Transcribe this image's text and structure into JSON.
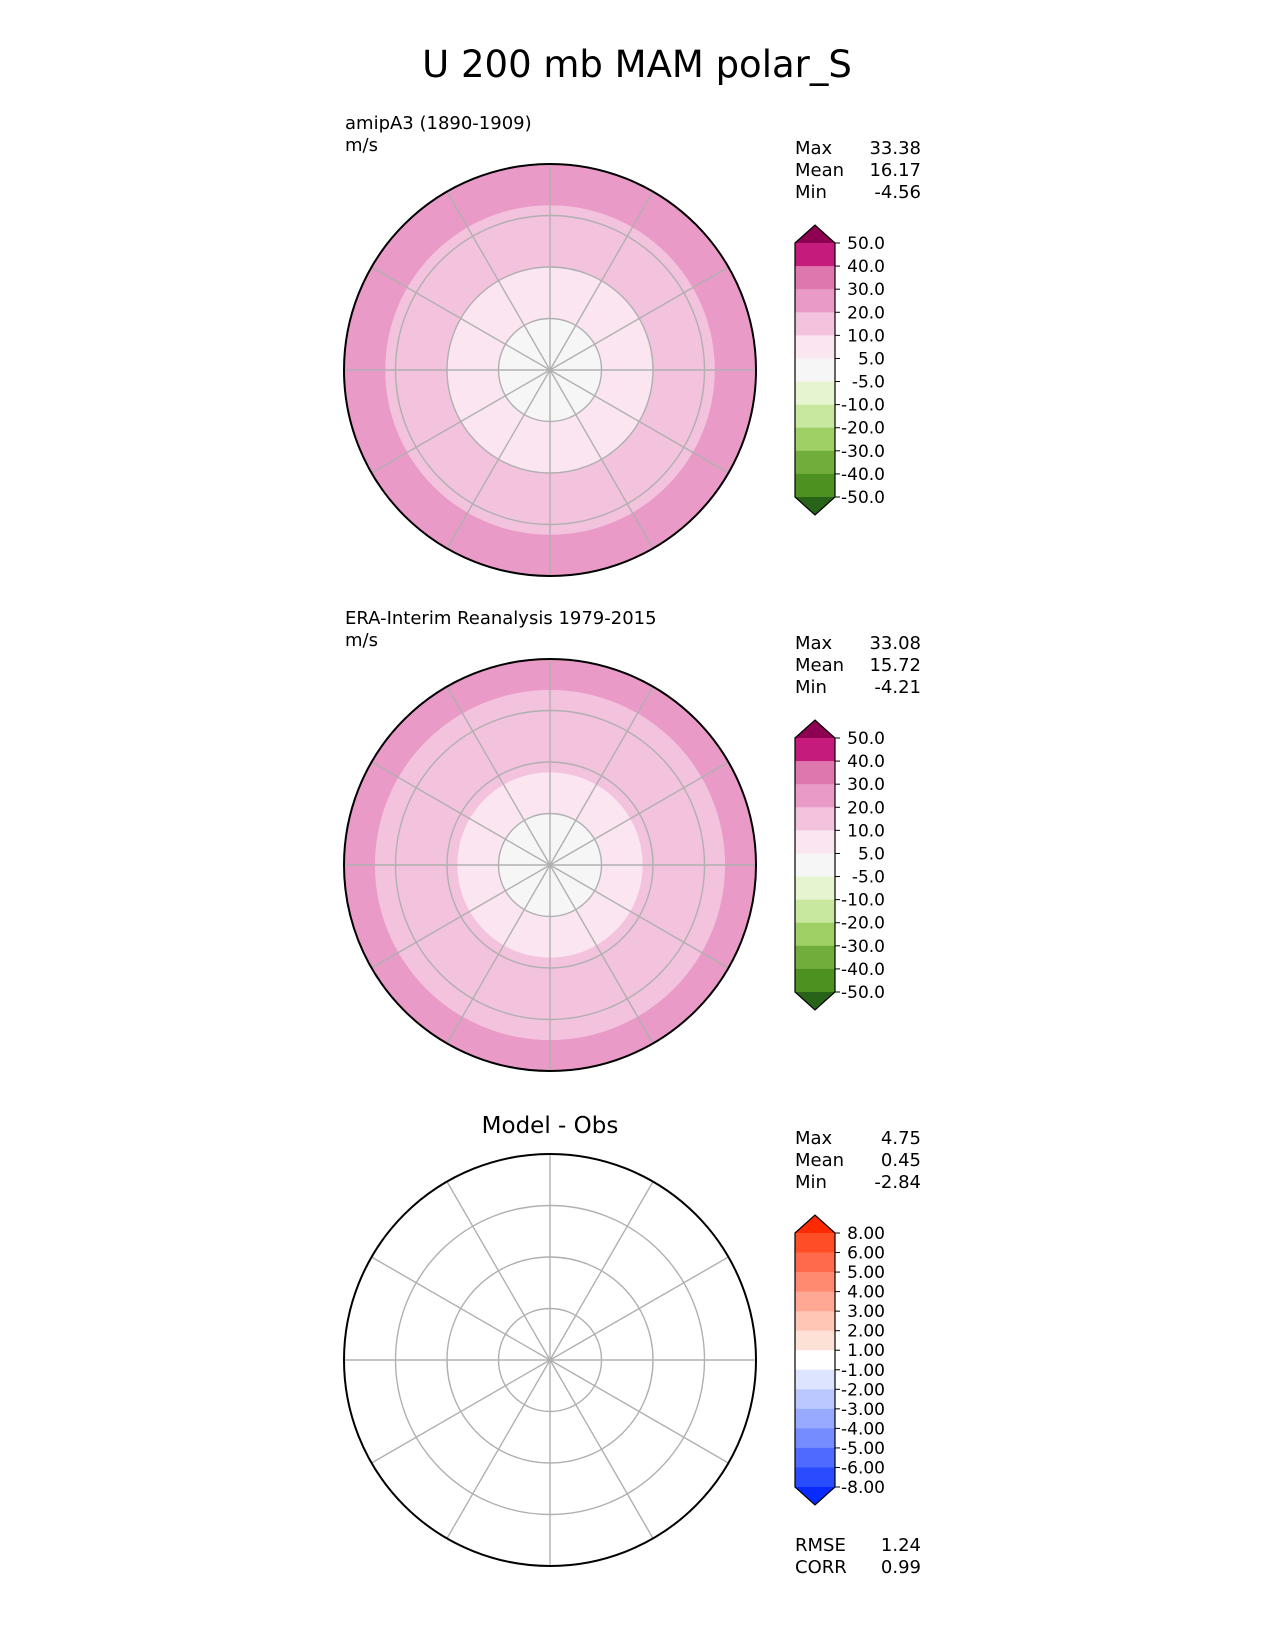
{
  "chart_data": {
    "type": "heatmap",
    "title": "U 200 mb MAM polar_S",
    "panels": [
      {
        "id": "test",
        "title": "",
        "subtitle_lines": [
          "amipA3 (1890-1909)",
          "m/s"
        ],
        "stats": [
          {
            "label": "Max",
            "value": "33.38"
          },
          {
            "label": "Mean",
            "value": "16.17"
          },
          {
            "label": "Min",
            "value": "-4.56"
          }
        ],
        "colorbar": {
          "levels": [
            "50.0",
            "40.0",
            "30.0",
            "20.0",
            "10.0",
            "5.0",
            "-5.0",
            "-10.0",
            "-20.0",
            "-30.0",
            "-40.0",
            "-50.0"
          ],
          "colors": [
            "#8e0152",
            "#c51b7d",
            "#de77ae",
            "#e99ac6",
            "#f3c2dd",
            "#fbe5f0",
            "#f6f6f6",
            "#e6f5d0",
            "#c8e8a0",
            "#9fd065",
            "#71ad3a",
            "#4d9221",
            "#276419"
          ],
          "extend": "both"
        },
        "field_bands": [
          {
            "min_lat": -90,
            "max_lat": -80,
            "value": 2.5
          },
          {
            "min_lat": -80,
            "max_lat": -70,
            "value": 7.5
          },
          {
            "min_lat": -70,
            "max_lat": -58,
            "value": 15.0
          },
          {
            "min_lat": -58,
            "max_lat": -50,
            "value": 25.0
          }
        ],
        "extras": []
      },
      {
        "id": "ref",
        "title": "",
        "subtitle_lines": [
          "ERA-Interim Reanalysis 1979-2015",
          "m/s"
        ],
        "stats": [
          {
            "label": "Max",
            "value": "33.08"
          },
          {
            "label": "Mean",
            "value": "15.72"
          },
          {
            "label": "Min",
            "value": "-4.21"
          }
        ],
        "colorbar": {
          "levels": [
            "50.0",
            "40.0",
            "30.0",
            "20.0",
            "10.0",
            "5.0",
            "-5.0",
            "-10.0",
            "-20.0",
            "-30.0",
            "-40.0",
            "-50.0"
          ],
          "colors": [
            "#8e0152",
            "#c51b7d",
            "#de77ae",
            "#e99ac6",
            "#f3c2dd",
            "#fbe5f0",
            "#f6f6f6",
            "#e6f5d0",
            "#c8e8a0",
            "#9fd065",
            "#71ad3a",
            "#4d9221",
            "#276419"
          ],
          "extend": "both"
        },
        "field_bands": [
          {
            "min_lat": -90,
            "max_lat": -80,
            "value": 2.5
          },
          {
            "min_lat": -80,
            "max_lat": -72,
            "value": 7.5
          },
          {
            "min_lat": -72,
            "max_lat": -56,
            "value": 15.0
          },
          {
            "min_lat": -56,
            "max_lat": -50,
            "value": 25.0
          }
        ],
        "extras": []
      },
      {
        "id": "diff",
        "title": "Model - Obs",
        "subtitle_lines": [],
        "stats": [
          {
            "label": "Max",
            "value": "4.75"
          },
          {
            "label": "Mean",
            "value": "0.45"
          },
          {
            "label": "Min",
            "value": "-2.84"
          }
        ],
        "colorbar": {
          "levels": [
            "8.00",
            "6.00",
            "5.00",
            "4.00",
            "3.00",
            "2.00",
            "1.00",
            "-1.00",
            "-2.00",
            "-3.00",
            "-4.00",
            "-5.00",
            "-6.00",
            "-8.00"
          ],
          "colors": [
            "#ff2a00",
            "#ff4d26",
            "#ff6b4a",
            "#ff8a70",
            "#ffa994",
            "#ffc5b5",
            "#fde0d6",
            "#ffffff",
            "#dde4ff",
            "#bac8ff",
            "#97aaff",
            "#748cff",
            "#4f6bff",
            "#2a4cff",
            "#0a2bff"
          ],
          "extend": "both"
        },
        "field_bands": [
          {
            "min_lat": -90,
            "max_lat": -50,
            "value": 0.0
          }
        ],
        "extras": [
          {
            "label": "RMSE",
            "value": "1.24"
          },
          {
            "label": "CORR",
            "value": "0.99"
          }
        ]
      }
    ],
    "projection": "south polar stereographic",
    "lat_range": [
      -90,
      -50
    ],
    "grid": {
      "parallels": [
        -80,
        -70,
        -60,
        -50
      ],
      "meridian_step_deg": 30
    }
  }
}
